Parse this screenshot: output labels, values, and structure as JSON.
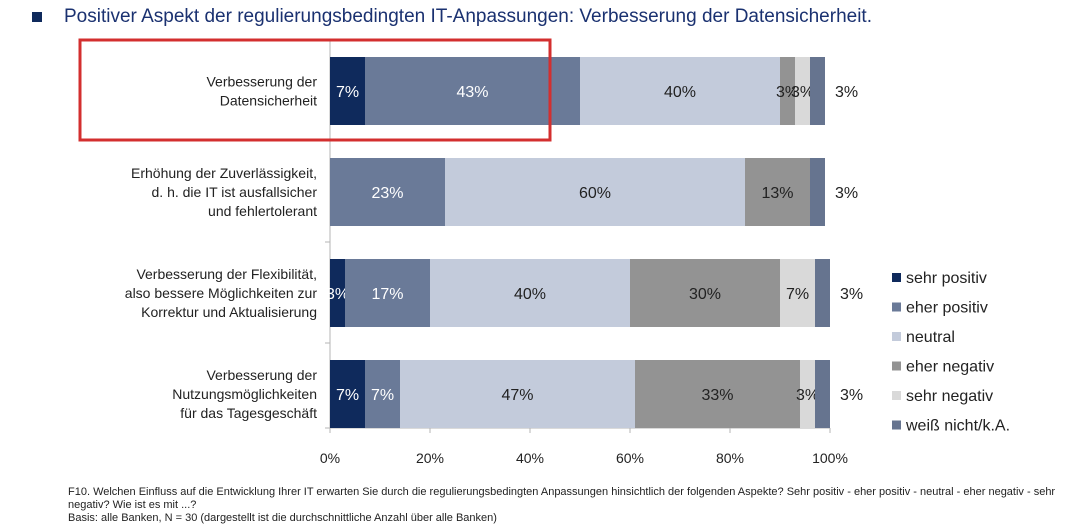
{
  "title": "Positiver Aspekt der regulierungsbedingten IT-Anpassungen: Verbesserung der Datensicherheit.",
  "chart_data": {
    "type": "bar",
    "orientation": "horizontal",
    "stacked": true,
    "categories": [
      [
        "Verbesserung der",
        "Datensicherheit"
      ],
      [
        "Erhöhung der Zuverlässigkeit,",
        "d. h. die IT ist ausfallsicher",
        "und fehlertolerant"
      ],
      [
        "Verbesserung der Flexibilität,",
        "also bessere Möglichkeiten zur",
        "Korrektur und Aktualisierung"
      ],
      [
        "Verbesserung der",
        "Nutzungsmöglichkeiten",
        "für das Tagesgeschäft"
      ]
    ],
    "series": [
      {
        "name": "sehr positiv",
        "color": "#0f2a5c",
        "values": [
          7,
          0,
          3,
          7
        ]
      },
      {
        "name": "eher positiv",
        "color": "#6a7a98",
        "values": [
          43,
          23,
          17,
          7
        ]
      },
      {
        "name": "neutral",
        "color": "#c3cbdb",
        "values": [
          40,
          60,
          40,
          47
        ]
      },
      {
        "name": "eher negativ",
        "color": "#939393",
        "values": [
          3,
          13,
          30,
          33
        ]
      },
      {
        "name": "sehr negativ",
        "color": "#d9d9d9",
        "values": [
          3,
          0,
          7,
          3
        ]
      },
      {
        "name": "weiß nicht/k.A.",
        "color": "#66748f",
        "values": [
          3,
          3,
          3,
          3
        ]
      }
    ],
    "data_labels": [
      [
        "7%",
        "43%",
        "40%",
        "3%",
        "3%",
        "3%"
      ],
      [
        "",
        "23%",
        "60%",
        "13%",
        "",
        "3%"
      ],
      [
        "3%",
        "17%",
        "40%",
        "30%",
        "7%",
        "3%"
      ],
      [
        "7%",
        "7%",
        "47%",
        "33%",
        "3%",
        "3%"
      ]
    ],
    "xlim": [
      0,
      100
    ],
    "xticks": [
      "0%",
      "20%",
      "40%",
      "60%",
      "80%",
      "100%"
    ],
    "legend_position": "right",
    "highlight_category": 0,
    "highlight_color": "#d32f2f"
  },
  "footnote": {
    "line1": "F10. Welchen Einfluss auf die Entwicklung Ihrer IT erwarten Sie durch die regulierungsbedingten Anpassungen hinsichtlich der folgenden Aspekte? Sehr positiv - eher positiv - neutral - eher negativ - sehr negativ? Wie ist es mit ...?",
    "line2": "Basis: alle Banken, N = 30 (dargestellt ist die durchschnittliche Anzahl über alle Banken)"
  }
}
